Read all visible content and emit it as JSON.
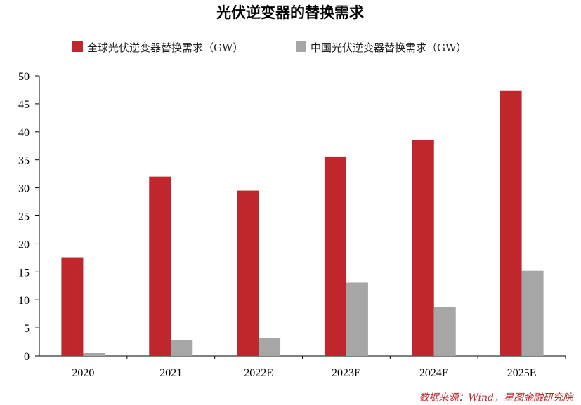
{
  "chart_data": {
    "type": "bar",
    "title": "光伏逆变器的替换需求",
    "categories": [
      "2020",
      "2021",
      "2022E",
      "2023E",
      "2024E",
      "2025E"
    ],
    "series": [
      {
        "name": "全球光伏逆变器替换需求（GW）",
        "color": "#c0272d",
        "values": [
          17.6,
          32.0,
          29.5,
          35.6,
          38.5,
          47.4
        ]
      },
      {
        "name": "中国光伏逆变器替换需求（GW）",
        "color": "#a6a6a6",
        "values": [
          0.5,
          2.8,
          3.2,
          13.1,
          8.7,
          15.2
        ]
      }
    ],
    "ylim": [
      0,
      50
    ],
    "yticks": [
      0,
      5,
      10,
      15,
      20,
      25,
      30,
      35,
      40,
      45,
      50
    ],
    "xlabel": "",
    "ylabel": "",
    "grid": false,
    "legend_position": "top-center",
    "source": "数据来源：Wind，星图金融研究院"
  }
}
